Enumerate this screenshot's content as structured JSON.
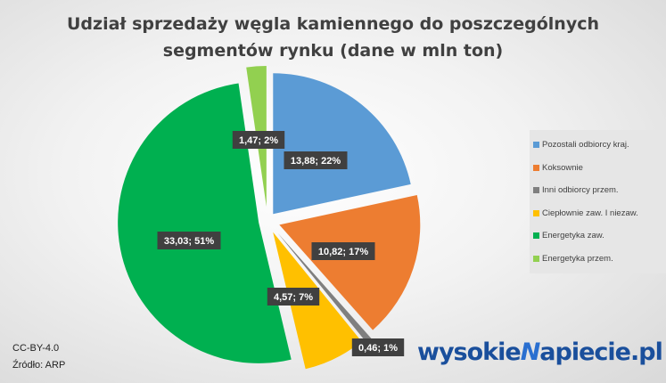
{
  "chart_data": {
    "type": "pie",
    "title": "Udział sprzedaży węgla kamiennego do poszczególnych segmentów rynku (dane w mln ton)",
    "title_lines": [
      "Udział sprzedaży węgla kamiennego do poszczególnych",
      "segmentów rynku (dane w mln ton)"
    ],
    "legend_position": "right",
    "exploded": true,
    "slices": [
      {
        "name": "Pozostali odbiorcy kraj.",
        "value": 13.88,
        "percent": 22,
        "label": "13,88; 22%",
        "color": "#5B9BD5"
      },
      {
        "name": "Koksownie",
        "value": 10.82,
        "percent": 17,
        "label": "10,82; 17%",
        "color": "#ED7D31"
      },
      {
        "name": "Inni odbiorcy przem.",
        "value": 0.46,
        "percent": 1,
        "label": "0,46; 1%",
        "color": "#7F7F7F"
      },
      {
        "name": "Ciepłownie zaw. I niezaw.",
        "value": 4.57,
        "percent": 7,
        "label": "4,57; 7%",
        "color": "#FFC000"
      },
      {
        "name": "Energetyka zaw.",
        "value": 33.03,
        "percent": 51,
        "label": "33,03; 51%",
        "color": "#00B050"
      },
      {
        "name": "Energetyka przem.",
        "value": 1.47,
        "percent": 2,
        "label": "1,47; 2%",
        "color": "#92D050"
      }
    ]
  },
  "footer": {
    "license": "CC-BY-4.0",
    "source": "Źródło: ARP",
    "logo": "wysokieNapiecie.pl"
  }
}
